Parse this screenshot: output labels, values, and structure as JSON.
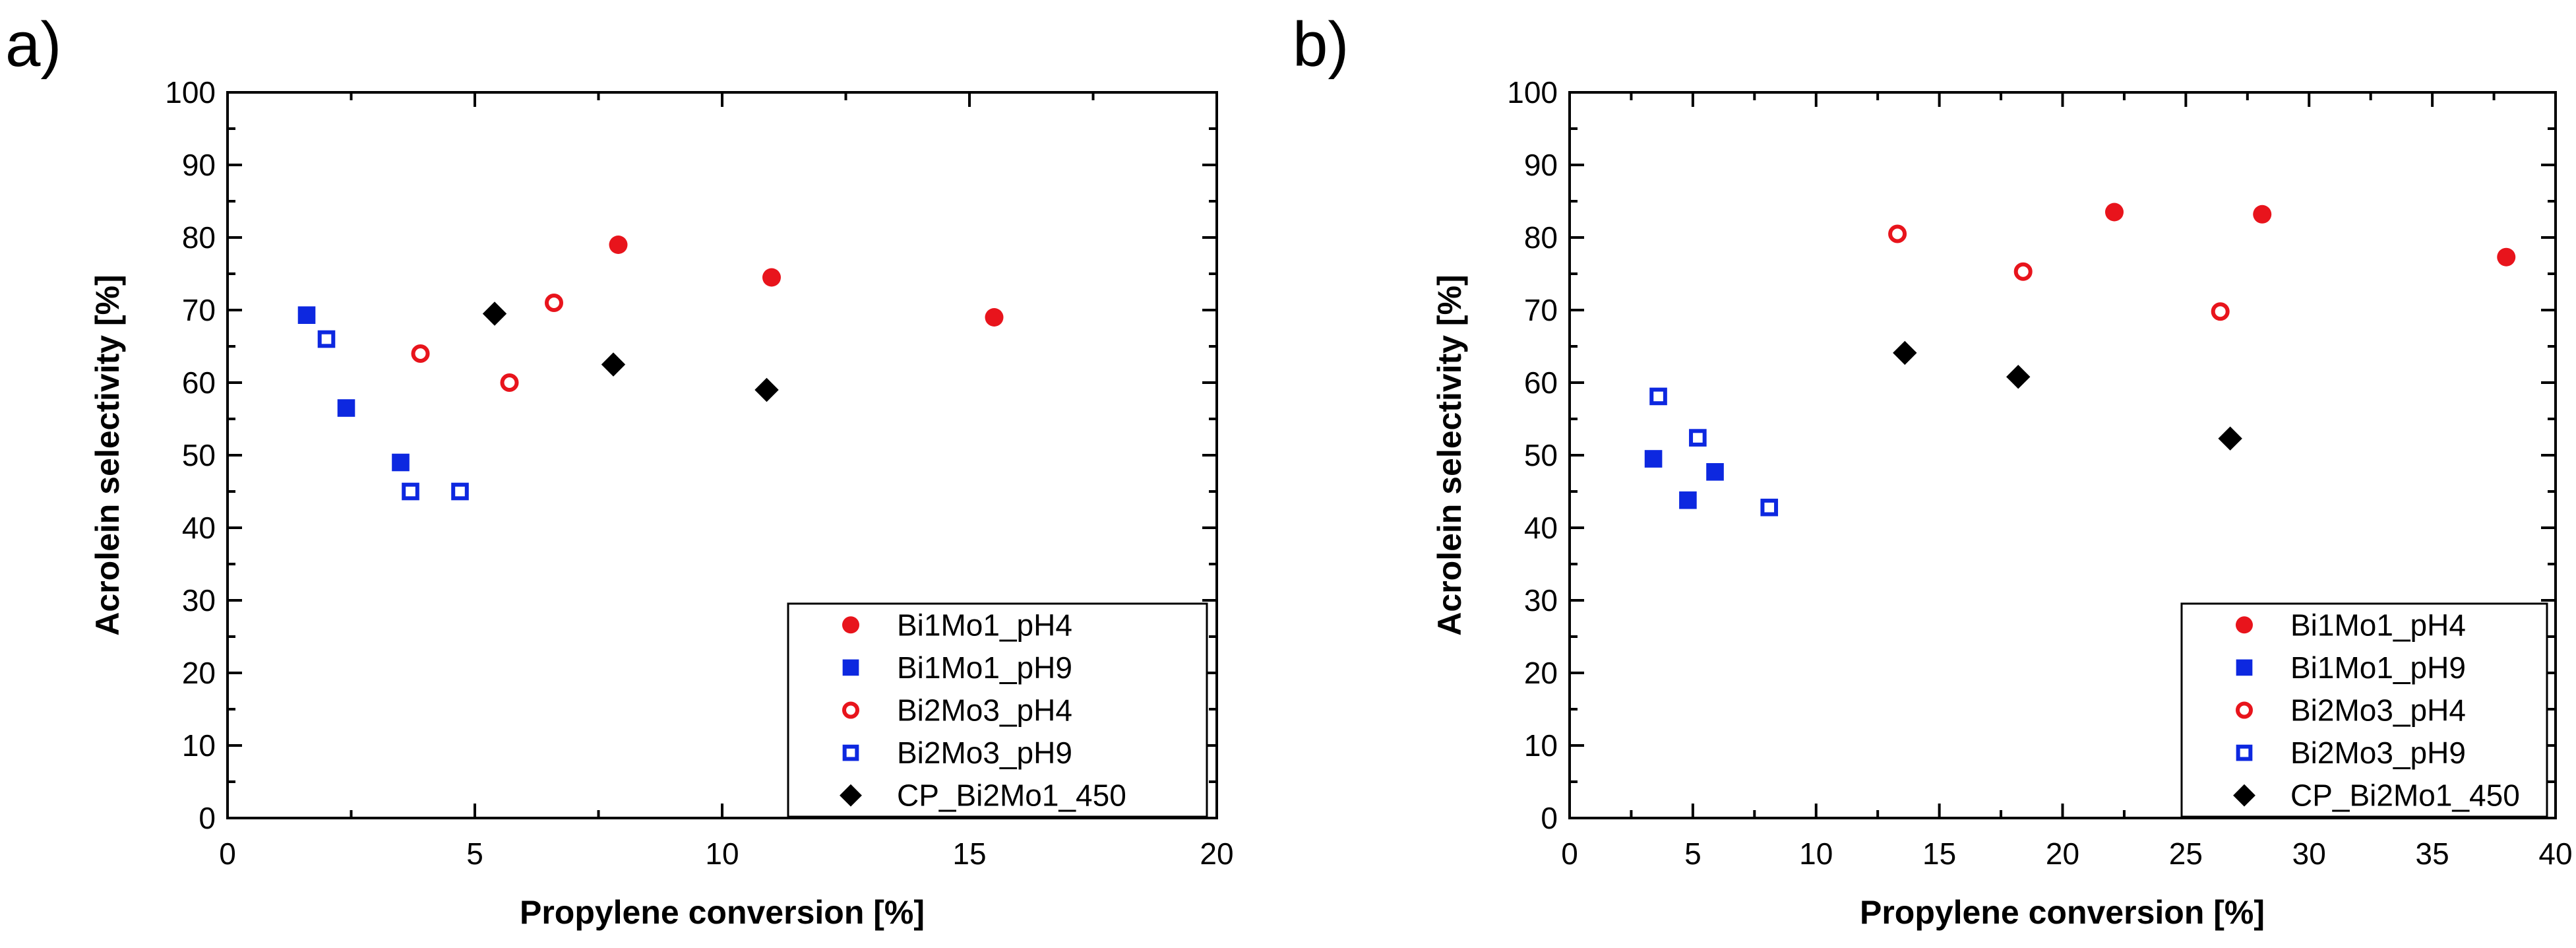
{
  "chart_data": [
    {
      "panel_label": "a)",
      "type": "scatter",
      "xlabel": "Propylene conversion [%]",
      "ylabel": "Acrolein selectivity [%]",
      "xlim": [
        0,
        20
      ],
      "ylim": [
        0,
        100
      ],
      "xticks": [
        0,
        5,
        10,
        15,
        20
      ],
      "yticks": [
        0,
        10,
        20,
        30,
        40,
        50,
        60,
        70,
        80,
        90,
        100
      ],
      "legend_position": "bottom-right",
      "series": [
        {
          "name": "Bi1Mo1_pH4",
          "marker": "circle",
          "filled": true,
          "color": "#e8141c",
          "points": [
            [
              7.9,
              79
            ],
            [
              11.0,
              74.5
            ],
            [
              15.5,
              69
            ]
          ]
        },
        {
          "name": "Bi1Mo1_pH9",
          "marker": "square",
          "filled": true,
          "color": "#0d28e0",
          "points": [
            [
              1.6,
              69.3
            ],
            [
              2.4,
              56.5
            ],
            [
              3.5,
              49
            ]
          ]
        },
        {
          "name": "Bi2Mo3_pH4",
          "marker": "circle",
          "filled": false,
          "color": "#e8141c",
          "points": [
            [
              3.9,
              64
            ],
            [
              5.7,
              60
            ],
            [
              6.6,
              71
            ]
          ]
        },
        {
          "name": "Bi2Mo3_pH9",
          "marker": "square",
          "filled": false,
          "color": "#0d28e0",
          "points": [
            [
              2.0,
              66
            ],
            [
              3.7,
              45
            ],
            [
              4.7,
              45
            ]
          ]
        },
        {
          "name": "CP_Bi2Mo1_450",
          "marker": "diamond",
          "filled": true,
          "color": "#000000",
          "points": [
            [
              5.4,
              69.5
            ],
            [
              7.8,
              62.5
            ],
            [
              10.9,
              59
            ]
          ]
        }
      ]
    },
    {
      "panel_label": "b)",
      "type": "scatter",
      "xlabel": "Propylene conversion [%]",
      "ylabel": "Acrolein selectivity [%]",
      "xlim": [
        0,
        40
      ],
      "ylim": [
        0,
        100
      ],
      "xticks": [
        0,
        5,
        10,
        15,
        20,
        25,
        30,
        35,
        40
      ],
      "yticks": [
        0,
        10,
        20,
        30,
        40,
        50,
        60,
        70,
        80,
        90,
        100
      ],
      "legend_position": "bottom-right",
      "series": [
        {
          "name": "Bi1Mo1_pH4",
          "marker": "circle",
          "filled": true,
          "color": "#e8141c",
          "points": [
            [
              22.1,
              83.5
            ],
            [
              28.1,
              83.2
            ],
            [
              38.0,
              77.3
            ]
          ]
        },
        {
          "name": "Bi1Mo1_pH9",
          "marker": "square",
          "filled": true,
          "color": "#0d28e0",
          "points": [
            [
              3.4,
              49.5
            ],
            [
              4.8,
              43.8
            ],
            [
              5.9,
              47.7
            ]
          ]
        },
        {
          "name": "Bi2Mo3_pH4",
          "marker": "circle",
          "filled": false,
          "color": "#e8141c",
          "points": [
            [
              13.3,
              80.5
            ],
            [
              18.4,
              75.3
            ],
            [
              26.4,
              69.8
            ]
          ]
        },
        {
          "name": "Bi2Mo3_pH9",
          "marker": "square",
          "filled": false,
          "color": "#0d28e0",
          "points": [
            [
              3.6,
              58.1
            ],
            [
              5.2,
              52.4
            ],
            [
              8.1,
              42.8
            ]
          ]
        },
        {
          "name": "CP_Bi2Mo1_450",
          "marker": "diamond",
          "filled": true,
          "color": "#000000",
          "points": [
            [
              13.6,
              64.1
            ],
            [
              18.2,
              60.8
            ],
            [
              26.8,
              52.3
            ]
          ]
        }
      ]
    }
  ]
}
